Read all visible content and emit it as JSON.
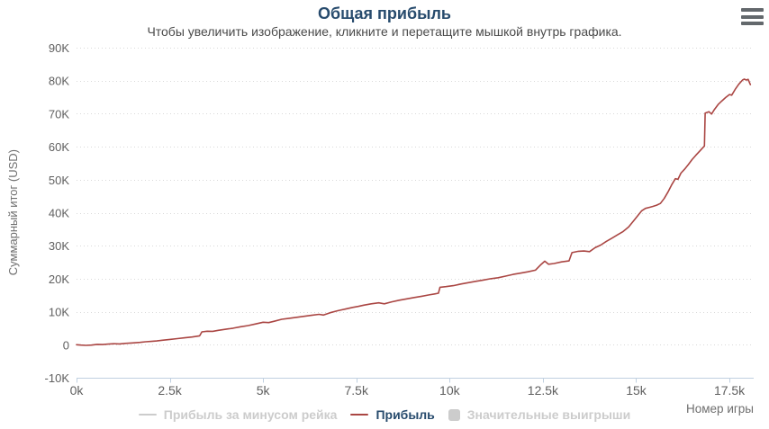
{
  "header": {
    "title": "Общая прибыль",
    "subtitle": "Чтобы увеличить изображение, кликните и перетащите мышкой внутрь графика."
  },
  "menu": {
    "icon": "hamburger-menu-icon"
  },
  "colors": {
    "title": "#274b6d",
    "subtitle": "#4a4a4a",
    "axis_label": "#606060",
    "axis_title": "#6f6f6f",
    "grid": "#d9d9d9",
    "axis_line": "#c0d0e0",
    "series_line": "#AA4643",
    "legend_active": "#274b6d",
    "legend_hidden": "#cccccc",
    "menu_icon": "#63686c"
  },
  "chart_data": {
    "type": "line",
    "title": "Общая прибыль",
    "subtitle": "Чтобы увеличить изображение, кликните и перетащите мышкой внутрь графика.",
    "xlabel": "Номер игры",
    "ylabel": "Суммарный итог (USD)",
    "x_unit": "thousands of games",
    "y_unit": "thousands of USD",
    "xlim": [
      0,
      18.15
    ],
    "ylim": [
      -10,
      90
    ],
    "grid": "horizontal dotted",
    "legend_position": "bottom-center",
    "x_ticks": [
      {
        "value": 0,
        "label": "0k"
      },
      {
        "value": 2.5,
        "label": "2.5k"
      },
      {
        "value": 5,
        "label": "5k"
      },
      {
        "value": 7.5,
        "label": "7.5k"
      },
      {
        "value": 10,
        "label": "10k"
      },
      {
        "value": 12.5,
        "label": "12.5k"
      },
      {
        "value": 15,
        "label": "15k"
      },
      {
        "value": 17.5,
        "label": "17.5k"
      }
    ],
    "y_ticks": [
      {
        "value": -10,
        "label": "-10K"
      },
      {
        "value": 0,
        "label": "0"
      },
      {
        "value": 10,
        "label": "10K"
      },
      {
        "value": 20,
        "label": "20K"
      },
      {
        "value": 30,
        "label": "30K"
      },
      {
        "value": 40,
        "label": "40K"
      },
      {
        "value": 50,
        "label": "50K"
      },
      {
        "value": 60,
        "label": "60K"
      },
      {
        "value": 70,
        "label": "70K"
      },
      {
        "value": 80,
        "label": "80K"
      },
      {
        "value": 90,
        "label": "90K"
      }
    ],
    "series": [
      {
        "name": "Прибыль за минусом рейка",
        "visible": false,
        "marker": "line",
        "color": "#cccccc"
      },
      {
        "name": "Прибыль",
        "visible": true,
        "marker": "line",
        "color": "#AA4643",
        "points": [
          [
            0,
            0
          ],
          [
            0.12,
            -0.1
          ],
          [
            0.25,
            -0.2
          ],
          [
            0.4,
            -0.1
          ],
          [
            0.55,
            0.1
          ],
          [
            0.7,
            0.05
          ],
          [
            0.85,
            0.2
          ],
          [
            1,
            0.3
          ],
          [
            1.15,
            0.25
          ],
          [
            1.3,
            0.4
          ],
          [
            1.5,
            0.55
          ],
          [
            1.7,
            0.7
          ],
          [
            1.85,
            0.9
          ],
          [
            2,
            1
          ],
          [
            2.15,
            1.15
          ],
          [
            2.3,
            1.35
          ],
          [
            2.5,
            1.6
          ],
          [
            2.7,
            1.85
          ],
          [
            2.9,
            2.1
          ],
          [
            3.1,
            2.35
          ],
          [
            3.3,
            2.7
          ],
          [
            3.36,
            3.9
          ],
          [
            3.5,
            4.1
          ],
          [
            3.65,
            4.05
          ],
          [
            3.8,
            4.35
          ],
          [
            4,
            4.7
          ],
          [
            4.2,
            5
          ],
          [
            4.4,
            5.45
          ],
          [
            4.6,
            5.8
          ],
          [
            4.8,
            6.3
          ],
          [
            5,
            6.8
          ],
          [
            5.15,
            6.7
          ],
          [
            5.3,
            7.1
          ],
          [
            5.5,
            7.7
          ],
          [
            5.7,
            8
          ],
          [
            5.9,
            8.3
          ],
          [
            6.1,
            8.6
          ],
          [
            6.3,
            8.9
          ],
          [
            6.5,
            9.2
          ],
          [
            6.62,
            9
          ],
          [
            6.8,
            9.7
          ],
          [
            7,
            10.3
          ],
          [
            7.2,
            10.8
          ],
          [
            7.4,
            11.3
          ],
          [
            7.55,
            11.6
          ],
          [
            7.7,
            12
          ],
          [
            7.9,
            12.4
          ],
          [
            8.1,
            12.7
          ],
          [
            8.25,
            12.4
          ],
          [
            8.45,
            13
          ],
          [
            8.65,
            13.5
          ],
          [
            8.85,
            13.9
          ],
          [
            9.05,
            14.3
          ],
          [
            9.25,
            14.7
          ],
          [
            9.45,
            15.1
          ],
          [
            9.6,
            15.4
          ],
          [
            9.7,
            15.6
          ],
          [
            9.74,
            17.4
          ],
          [
            9.9,
            17.6
          ],
          [
            10.1,
            17.9
          ],
          [
            10.3,
            18.4
          ],
          [
            10.5,
            18.8
          ],
          [
            10.7,
            19.2
          ],
          [
            10.9,
            19.6
          ],
          [
            11.1,
            20
          ],
          [
            11.3,
            20.3
          ],
          [
            11.5,
            20.8
          ],
          [
            11.7,
            21.3
          ],
          [
            11.9,
            21.7
          ],
          [
            12.1,
            22.1
          ],
          [
            12.3,
            22.6
          ],
          [
            12.45,
            24.3
          ],
          [
            12.55,
            25.3
          ],
          [
            12.65,
            24.4
          ],
          [
            12.8,
            24.6
          ],
          [
            13,
            25.1
          ],
          [
            13.2,
            25.4
          ],
          [
            13.28,
            27.9
          ],
          [
            13.45,
            28.3
          ],
          [
            13.6,
            28.4
          ],
          [
            13.75,
            28.2
          ],
          [
            13.9,
            29.4
          ],
          [
            14.05,
            30.2
          ],
          [
            14.2,
            31.3
          ],
          [
            14.35,
            32.3
          ],
          [
            14.5,
            33.3
          ],
          [
            14.65,
            34.3
          ],
          [
            14.8,
            35.7
          ],
          [
            14.95,
            37.8
          ],
          [
            15.05,
            39.2
          ],
          [
            15.15,
            40.6
          ],
          [
            15.25,
            41.3
          ],
          [
            15.35,
            41.6
          ],
          [
            15.45,
            41.9
          ],
          [
            15.55,
            42.3
          ],
          [
            15.65,
            42.8
          ],
          [
            15.75,
            44.3
          ],
          [
            15.85,
            46.2
          ],
          [
            15.95,
            48.4
          ],
          [
            16.05,
            50.3
          ],
          [
            16.12,
            50.1
          ],
          [
            16.2,
            52
          ],
          [
            16.3,
            53.2
          ],
          [
            16.4,
            54.6
          ],
          [
            16.5,
            56.1
          ],
          [
            16.6,
            57.4
          ],
          [
            16.7,
            58.6
          ],
          [
            16.78,
            59.6
          ],
          [
            16.83,
            60.2
          ],
          [
            16.85,
            70.2
          ],
          [
            16.95,
            70.6
          ],
          [
            17.02,
            69.9
          ],
          [
            17.1,
            71.3
          ],
          [
            17.2,
            72.8
          ],
          [
            17.3,
            73.9
          ],
          [
            17.4,
            74.9
          ],
          [
            17.5,
            75.8
          ],
          [
            17.56,
            75.6
          ],
          [
            17.65,
            77.3
          ],
          [
            17.75,
            78.9
          ],
          [
            17.85,
            80.2
          ],
          [
            17.9,
            80.5
          ],
          [
            17.95,
            80.2
          ],
          [
            18,
            80.4
          ],
          [
            18.06,
            78.8
          ]
        ]
      },
      {
        "name": "Значительные выигрыши",
        "visible": false,
        "marker": "square",
        "color": "#cccccc"
      }
    ]
  }
}
